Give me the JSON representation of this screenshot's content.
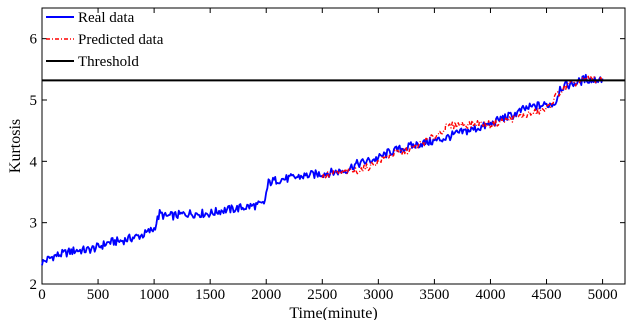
{
  "chart_data": {
    "type": "line",
    "xlabel": "Time(minute)",
    "ylabel": "Kurtosis",
    "xlim": [
      0,
      5200
    ],
    "ylim": [
      2,
      6.5
    ],
    "x_ticks": [
      0,
      500,
      1000,
      1500,
      2000,
      2500,
      3000,
      3500,
      4000,
      4500,
      5000
    ],
    "y_ticks": [
      2,
      3,
      4,
      5,
      6
    ],
    "legend_position": "top-left",
    "grid": false,
    "series": [
      {
        "name": "Real data",
        "color": "#0000ff",
        "style": "solid",
        "x": [
          0,
          100,
          200,
          300,
          400,
          500,
          600,
          700,
          800,
          900,
          1000,
          1050,
          1100,
          1200,
          1300,
          1400,
          1500,
          1600,
          1700,
          1800,
          1900,
          1980,
          2020,
          2100,
          2200,
          2300,
          2400,
          2500,
          2600,
          2700,
          2800,
          2900,
          3000,
          3100,
          3200,
          3300,
          3400,
          3500,
          3600,
          3700,
          3800,
          3900,
          4000,
          4100,
          4200,
          4300,
          4400,
          4500,
          4580,
          4620,
          4700,
          4800,
          4850,
          4900,
          5000
        ],
        "y": [
          2.35,
          2.45,
          2.5,
          2.55,
          2.55,
          2.6,
          2.68,
          2.7,
          2.75,
          2.8,
          2.9,
          3.15,
          3.1,
          3.12,
          3.15,
          3.15,
          3.15,
          3.2,
          3.22,
          3.25,
          3.28,
          3.3,
          3.65,
          3.7,
          3.72,
          3.75,
          3.78,
          3.8,
          3.82,
          3.85,
          3.95,
          4.0,
          4.05,
          4.15,
          4.2,
          4.25,
          4.3,
          4.33,
          4.38,
          4.45,
          4.5,
          4.55,
          4.6,
          4.7,
          4.75,
          4.85,
          4.9,
          4.92,
          4.95,
          5.2,
          5.25,
          5.3,
          5.35,
          5.32,
          5.35
        ]
      },
      {
        "name": "Predicted data",
        "color": "#ff0000",
        "style": "dash-dot",
        "x": [
          2500,
          2600,
          2700,
          2800,
          2900,
          3000,
          3100,
          3200,
          3300,
          3400,
          3500,
          3600,
          3700,
          3800,
          3900,
          4000,
          4100,
          4200,
          4300,
          4400,
          4500,
          4600,
          4700,
          4800,
          4900,
          5000
        ],
        "y": [
          3.75,
          3.8,
          3.82,
          3.85,
          3.9,
          4.0,
          4.1,
          4.15,
          4.2,
          4.3,
          4.4,
          4.55,
          4.6,
          4.6,
          4.62,
          4.6,
          4.65,
          4.7,
          4.75,
          4.8,
          4.85,
          5.1,
          5.25,
          5.3,
          5.35,
          5.3
        ]
      },
      {
        "name": "Threshold",
        "color": "#000000",
        "style": "solid",
        "x": [
          0,
          5200
        ],
        "y": [
          5.32,
          5.32
        ]
      }
    ]
  }
}
